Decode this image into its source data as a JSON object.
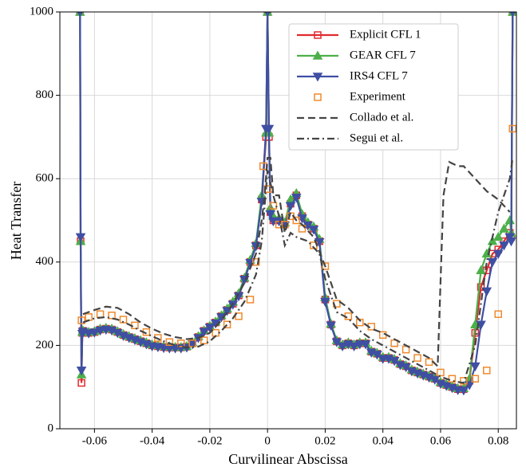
{
  "chart_data": {
    "type": "line",
    "xlabel": "Curvilinear Abscissa",
    "ylabel": "Heat Transfer",
    "xlim": [
      -0.072,
      0.0863
    ],
    "xticks": [
      -0.06,
      -0.04,
      -0.02,
      0,
      0.02,
      0.04,
      0.06,
      0.08
    ],
    "ylim": [
      0,
      1000
    ],
    "yticks": [
      0,
      200,
      400,
      600,
      800,
      1000
    ],
    "grid": true,
    "legend": "upper right",
    "series": [
      {
        "name": "Explicit CFL 1",
        "color": "#e02a2e",
        "linestyle": "-",
        "marker": "s",
        "x": [
          -0.065,
          -0.0648,
          -0.0645,
          -0.0642,
          -0.064,
          -0.062,
          -0.06,
          -0.058,
          -0.056,
          -0.054,
          -0.052,
          -0.05,
          -0.048,
          -0.046,
          -0.044,
          -0.042,
          -0.04,
          -0.038,
          -0.036,
          -0.034,
          -0.032,
          -0.03,
          -0.028,
          -0.026,
          -0.024,
          -0.022,
          -0.02,
          -0.018,
          -0.016,
          -0.014,
          -0.012,
          -0.01,
          -0.008,
          -0.006,
          -0.004,
          -0.002,
          -0.0005,
          0,
          0.0005,
          0.001,
          0.002,
          0.004,
          0.006,
          0.008,
          0.01,
          0.012,
          0.014,
          0.016,
          0.018,
          0.02,
          0.022,
          0.024,
          0.026,
          0.028,
          0.03,
          0.032,
          0.034,
          0.036,
          0.038,
          0.04,
          0.042,
          0.044,
          0.046,
          0.048,
          0.05,
          0.052,
          0.054,
          0.056,
          0.058,
          0.06,
          0.062,
          0.064,
          0.066,
          0.068,
          0.07,
          0.072,
          0.074,
          0.076,
          0.078,
          0.08,
          0.082,
          0.084,
          0.0845,
          0.085
        ],
        "values": [
          1000,
          450,
          110,
          230,
          235,
          230,
          232,
          238,
          240,
          238,
          232,
          225,
          220,
          215,
          210,
          205,
          200,
          198,
          196,
          195,
          195,
          195,
          197,
          205,
          220,
          235,
          245,
          255,
          270,
          285,
          300,
          320,
          360,
          400,
          440,
          550,
          700,
          1000,
          700,
          520,
          500,
          500,
          490,
          540,
          560,
          510,
          490,
          480,
          450,
          310,
          250,
          210,
          200,
          205,
          200,
          205,
          205,
          185,
          180,
          170,
          170,
          165,
          155,
          150,
          140,
          135,
          130,
          125,
          120,
          110,
          105,
          100,
          95,
          95,
          115,
          230,
          340,
          380,
          420,
          430,
          450,
          470,
          460,
          1000
        ]
      },
      {
        "name": "GEAR CFL 7",
        "color": "#4cb04a",
        "linestyle": "-",
        "marker": "^",
        "x": [
          -0.065,
          -0.0648,
          -0.0645,
          -0.0642,
          -0.064,
          -0.062,
          -0.06,
          -0.058,
          -0.056,
          -0.054,
          -0.052,
          -0.05,
          -0.048,
          -0.046,
          -0.044,
          -0.042,
          -0.04,
          -0.038,
          -0.036,
          -0.034,
          -0.032,
          -0.03,
          -0.028,
          -0.026,
          -0.024,
          -0.022,
          -0.02,
          -0.018,
          -0.016,
          -0.014,
          -0.012,
          -0.01,
          -0.008,
          -0.006,
          -0.004,
          -0.002,
          -0.0005,
          0,
          0.0005,
          0.001,
          0.002,
          0.004,
          0.006,
          0.008,
          0.01,
          0.012,
          0.014,
          0.016,
          0.018,
          0.02,
          0.022,
          0.024,
          0.026,
          0.028,
          0.03,
          0.032,
          0.034,
          0.036,
          0.038,
          0.04,
          0.042,
          0.044,
          0.046,
          0.048,
          0.05,
          0.052,
          0.054,
          0.056,
          0.058,
          0.06,
          0.062,
          0.064,
          0.066,
          0.068,
          0.07,
          0.072,
          0.074,
          0.076,
          0.078,
          0.08,
          0.082,
          0.084,
          0.0845,
          0.085
        ],
        "values": [
          1000,
          450,
          130,
          232,
          236,
          232,
          234,
          240,
          242,
          240,
          234,
          227,
          222,
          217,
          212,
          207,
          202,
          200,
          198,
          197,
          196,
          196,
          198,
          207,
          222,
          236,
          247,
          257,
          272,
          288,
          305,
          325,
          362,
          405,
          445,
          560,
          710,
          1000,
          710,
          530,
          510,
          505,
          495,
          550,
          565,
          515,
          495,
          485,
          455,
          315,
          252,
          212,
          202,
          207,
          202,
          207,
          207,
          187,
          182,
          172,
          172,
          167,
          157,
          152,
          142,
          137,
          132,
          127,
          122,
          112,
          107,
          102,
          97,
          97,
          120,
          250,
          380,
          420,
          450,
          460,
          480,
          500,
          470,
          1000
        ]
      },
      {
        "name": "IRS4 CFL 7",
        "color": "#3f4fa3",
        "linestyle": "-",
        "marker": "v",
        "x": [
          -0.065,
          -0.0648,
          -0.0645,
          -0.0642,
          -0.064,
          -0.062,
          -0.06,
          -0.058,
          -0.056,
          -0.054,
          -0.052,
          -0.05,
          -0.048,
          -0.046,
          -0.044,
          -0.042,
          -0.04,
          -0.038,
          -0.036,
          -0.034,
          -0.032,
          -0.03,
          -0.028,
          -0.026,
          -0.024,
          -0.022,
          -0.02,
          -0.018,
          -0.016,
          -0.014,
          -0.012,
          -0.01,
          -0.008,
          -0.006,
          -0.004,
          -0.002,
          -0.0005,
          0,
          0.0005,
          0.001,
          0.002,
          0.004,
          0.006,
          0.008,
          0.01,
          0.012,
          0.014,
          0.016,
          0.018,
          0.02,
          0.022,
          0.024,
          0.026,
          0.028,
          0.03,
          0.032,
          0.034,
          0.036,
          0.038,
          0.04,
          0.042,
          0.044,
          0.046,
          0.048,
          0.05,
          0.052,
          0.054,
          0.056,
          0.058,
          0.06,
          0.062,
          0.064,
          0.066,
          0.068,
          0.07,
          0.072,
          0.074,
          0.076,
          0.078,
          0.08,
          0.082,
          0.084,
          0.0845,
          0.085
        ],
        "values": [
          1000,
          460,
          140,
          228,
          233,
          229,
          231,
          236,
          238,
          236,
          230,
          223,
          218,
          213,
          208,
          203,
          198,
          196,
          194,
          193,
          193,
          193,
          195,
          203,
          218,
          233,
          243,
          253,
          268,
          283,
          298,
          318,
          358,
          398,
          438,
          545,
          720,
          1000,
          720,
          515,
          498,
          498,
          488,
          535,
          555,
          505,
          488,
          478,
          448,
          305,
          248,
          208,
          198,
          203,
          198,
          203,
          203,
          183,
          178,
          168,
          168,
          163,
          153,
          148,
          138,
          133,
          128,
          123,
          118,
          108,
          103,
          98,
          93,
          92,
          105,
          150,
          250,
          330,
          400,
          420,
          440,
          460,
          450,
          1000
        ]
      },
      {
        "name": "Experiment",
        "color": "#f08a2c",
        "linestyle": "none",
        "marker": "s",
        "x": [
          -0.0645,
          -0.062,
          -0.058,
          -0.054,
          -0.05,
          -0.046,
          -0.042,
          -0.038,
          -0.034,
          -0.03,
          -0.026,
          -0.022,
          -0.018,
          -0.014,
          -0.01,
          -0.006,
          -0.004,
          -0.0015,
          0,
          0.002,
          0.004,
          0.006,
          0.008,
          0.01,
          0.012,
          0.016,
          0.02,
          0.024,
          0.028,
          0.032,
          0.036,
          0.04,
          0.044,
          0.048,
          0.052,
          0.056,
          0.06,
          0.064,
          0.068,
          0.072,
          0.076,
          0.08,
          0.085
        ],
        "values": [
          260,
          268,
          275,
          272,
          262,
          248,
          232,
          218,
          208,
          205,
          205,
          212,
          230,
          250,
          270,
          310,
          400,
          630,
          575,
          535,
          490,
          490,
          510,
          500,
          480,
          440,
          390,
          300,
          270,
          255,
          245,
          225,
          205,
          190,
          170,
          160,
          135,
          120,
          115,
          120,
          140,
          275,
          720
        ]
      },
      {
        "name": "Collado et al.",
        "color": "#444444",
        "linestyle": "--",
        "marker": "none",
        "x": [
          -0.064,
          -0.06,
          -0.056,
          -0.052,
          -0.048,
          -0.044,
          -0.04,
          -0.036,
          -0.032,
          -0.028,
          -0.024,
          -0.02,
          -0.016,
          -0.012,
          -0.008,
          -0.004,
          -0.002,
          -0.001,
          0,
          0.001,
          0.002,
          0.004,
          0.006,
          0.008,
          0.01,
          0.012,
          0.016,
          0.02,
          0.024,
          0.028,
          0.032,
          0.036,
          0.04,
          0.044,
          0.048,
          0.052,
          0.056,
          0.059,
          0.061,
          0.063,
          0.066,
          0.068,
          0.072,
          0.076,
          0.08,
          0.084
        ],
        "values": [
          275,
          285,
          293,
          290,
          275,
          255,
          240,
          228,
          220,
          215,
          218,
          230,
          260,
          300,
          350,
          420,
          500,
          560,
          650,
          650,
          560,
          560,
          470,
          520,
          500,
          490,
          460,
          390,
          310,
          290,
          260,
          240,
          230,
          215,
          200,
          185,
          170,
          150,
          560,
          640,
          630,
          630,
          600,
          570,
          550,
          520
        ]
      },
      {
        "name": "Segui et al.",
        "color": "#444444",
        "linestyle": "-.",
        "marker": "none",
        "x": [
          -0.064,
          -0.06,
          -0.056,
          -0.052,
          -0.048,
          -0.044,
          -0.04,
          -0.036,
          -0.032,
          -0.028,
          -0.024,
          -0.02,
          -0.016,
          -0.012,
          -0.008,
          -0.004,
          -0.002,
          0,
          0.002,
          0.004,
          0.006,
          0.008,
          0.01,
          0.014,
          0.018,
          0.02,
          0.024,
          0.028,
          0.032,
          0.036,
          0.04,
          0.044,
          0.048,
          0.052,
          0.056,
          0.06,
          0.064,
          0.068,
          0.072,
          0.076,
          0.08,
          0.084,
          0.085
        ],
        "values": [
          255,
          265,
          268,
          262,
          250,
          235,
          222,
          210,
          200,
          195,
          197,
          210,
          235,
          265,
          305,
          370,
          450,
          620,
          560,
          510,
          440,
          470,
          460,
          450,
          420,
          360,
          280,
          265,
          235,
          215,
          200,
          185,
          170,
          155,
          140,
          125,
          115,
          110,
          200,
          400,
          520,
          600,
          650
        ]
      }
    ]
  }
}
